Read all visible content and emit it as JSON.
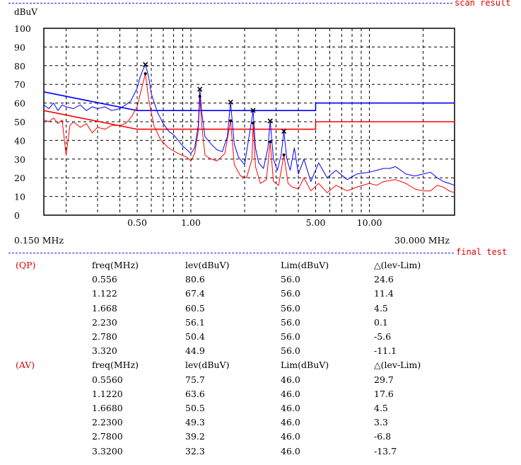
{
  "header": {
    "scan_title": "scan result",
    "final_title": "final test"
  },
  "chart_data": {
    "type": "line",
    "xscale": "log",
    "xlim": [
      0.15,
      30
    ],
    "ylim": [
      0,
      100
    ],
    "ylabel": "dBuV",
    "yticks": [
      0,
      10,
      20,
      30,
      40,
      50,
      60,
      70,
      80,
      90,
      100
    ],
    "xtick_labels": [
      {
        "value": 0.5,
        "label": "0.50"
      },
      {
        "value": 1,
        "label": "1.00"
      },
      {
        "value": 5,
        "label": "5.00"
      },
      {
        "value": 10,
        "label": "10.00"
      }
    ],
    "x_start_label": "0.150 MHz",
    "x_end_label": "30.000 MHz",
    "grid": true,
    "colors": {
      "qp": "#0000ff",
      "av": "#ff0000",
      "marker": "#000000"
    },
    "series": [
      {
        "color": "#0000ff",
        "x": [
          0.15,
          0.16,
          0.17,
          0.18,
          0.19,
          0.2,
          0.22,
          0.24,
          0.26,
          0.28,
          0.3,
          0.33,
          0.36,
          0.4,
          0.43,
          0.46,
          0.5,
          0.52,
          0.54,
          0.556,
          0.58,
          0.6,
          0.65,
          0.7,
          0.75,
          0.8,
          0.85,
          0.9,
          0.95,
          1.0,
          1.05,
          1.1,
          1.122,
          1.15,
          1.2,
          1.3,
          1.4,
          1.5,
          1.6,
          1.668,
          1.75,
          1.85,
          2.0,
          2.1,
          2.2,
          2.23,
          2.3,
          2.4,
          2.55,
          2.7,
          2.78,
          2.9,
          3.05,
          3.2,
          3.32,
          3.45,
          3.6,
          3.8,
          4.0,
          4.3,
          4.7,
          5.2,
          5.8,
          6.5,
          7.5,
          8.5,
          10,
          11,
          12,
          13,
          14,
          15,
          16,
          18,
          20,
          22,
          24,
          26,
          28,
          30
        ],
        "y": [
          59,
          57,
          60,
          56,
          59,
          58,
          57,
          59,
          56,
          58,
          57,
          58,
          56,
          57,
          59,
          61,
          68,
          74,
          78,
          80.6,
          74,
          65,
          55,
          49,
          45,
          43,
          40,
          37,
          35,
          33,
          36,
          48,
          67.4,
          55,
          42,
          38,
          35,
          34,
          42,
          60.5,
          38,
          31,
          27,
          40,
          52,
          56.1,
          36,
          28,
          25,
          36,
          50.4,
          30,
          24,
          32,
          44.9,
          30,
          24,
          36,
          22,
          30,
          18,
          28,
          20,
          24,
          19,
          22,
          23,
          24,
          25,
          25,
          26,
          24,
          22,
          21,
          22,
          23,
          20,
          18,
          17,
          16
        ]
      },
      {
        "color": "#ff0000",
        "x": [
          0.15,
          0.16,
          0.17,
          0.18,
          0.19,
          0.2,
          0.21,
          0.22,
          0.24,
          0.26,
          0.28,
          0.3,
          0.33,
          0.36,
          0.4,
          0.43,
          0.46,
          0.5,
          0.53,
          0.556,
          0.58,
          0.62,
          0.68,
          0.75,
          0.85,
          0.95,
          1.0,
          1.05,
          1.1,
          1.122,
          1.15,
          1.2,
          1.3,
          1.4,
          1.55,
          1.668,
          1.75,
          1.9,
          2.05,
          2.2,
          2.23,
          2.3,
          2.45,
          2.65,
          2.78,
          2.9,
          3.1,
          3.32,
          3.5,
          3.7,
          4.0,
          4.3,
          4.7,
          5.2,
          5.8,
          6.5,
          7.5,
          8.5,
          10,
          11,
          12,
          14,
          16,
          18,
          20,
          22,
          24,
          26,
          28,
          30
        ],
        "y": [
          51,
          50,
          52,
          49,
          51,
          32,
          48,
          50,
          47,
          49,
          44,
          47,
          46,
          48,
          48,
          49,
          52,
          58,
          68,
          75.7,
          62,
          48,
          40,
          36,
          33,
          31,
          29,
          33,
          45,
          63.6,
          48,
          32,
          30,
          29,
          33,
          50.5,
          27,
          21,
          20,
          30,
          49.3,
          26,
          17,
          19,
          39.2,
          18,
          16,
          32.3,
          17,
          15,
          14,
          20,
          13,
          17,
          12,
          16,
          13,
          15,
          17,
          16,
          18,
          19,
          17,
          14,
          13,
          13,
          16,
          15,
          13,
          12
        ]
      }
    ],
    "limits": [
      {
        "name": "QP limit",
        "color": "#0000ff",
        "points": [
          [
            0.15,
            66
          ],
          [
            0.5,
            56
          ],
          [
            5,
            56
          ],
          [
            5,
            60
          ],
          [
            30,
            60
          ]
        ]
      },
      {
        "name": "AV limit",
        "color": "#ff0000",
        "points": [
          [
            0.15,
            56
          ],
          [
            0.5,
            46
          ],
          [
            5,
            46
          ],
          [
            5,
            50
          ],
          [
            30,
            50
          ]
        ]
      }
    ],
    "markers_qp": [
      [
        0.556,
        80.6
      ],
      [
        1.122,
        67.4
      ],
      [
        1.668,
        60.5
      ],
      [
        2.23,
        56.1
      ],
      [
        2.78,
        50.4
      ],
      [
        3.32,
        44.9
      ]
    ],
    "markers_av": [
      [
        0.556,
        75.7
      ],
      [
        1.122,
        63.6
      ],
      [
        1.668,
        50.5
      ],
      [
        2.23,
        49.3
      ],
      [
        2.78,
        39.2
      ],
      [
        3.32,
        32.3
      ]
    ]
  },
  "final_test": {
    "groups": [
      {
        "label": "(QP)",
        "header": [
          "freq(MHz)",
          "lev(dBuV)",
          "Lim(dBuV)",
          "△(lev-Lim)"
        ],
        "rows": [
          [
            "0.556",
            "80.6",
            "56.0",
            "24.6"
          ],
          [
            "1.122",
            "67.4",
            "56.0",
            "11.4"
          ],
          [
            "1.668",
            "60.5",
            "56.0",
            "4.5"
          ],
          [
            "2.230",
            "56.1",
            "56.0",
            "0.1"
          ],
          [
            "2.780",
            "50.4",
            "56.0",
            "-5.6"
          ],
          [
            "3.320",
            "44.9",
            "56.0",
            "-11.1"
          ]
        ]
      },
      {
        "label": "(AV)",
        "header": [
          "freq(MHz)",
          "lev(dBuV)",
          "Lim(dBuV)",
          "△(lev-Lim)"
        ],
        "rows": [
          [
            "0.5560",
            "75.7",
            "46.0",
            "29.7"
          ],
          [
            "1.1220",
            "63.6",
            "46.0",
            "17.6"
          ],
          [
            "1.6680",
            "50.5",
            "46.0",
            "4.5"
          ],
          [
            "2.2300",
            "49.3",
            "46.0",
            "3.3"
          ],
          [
            "2.7800",
            "39.2",
            "46.0",
            "-6.8"
          ],
          [
            "3.3200",
            "32.3",
            "46.0",
            "-13.7"
          ]
        ]
      }
    ]
  }
}
